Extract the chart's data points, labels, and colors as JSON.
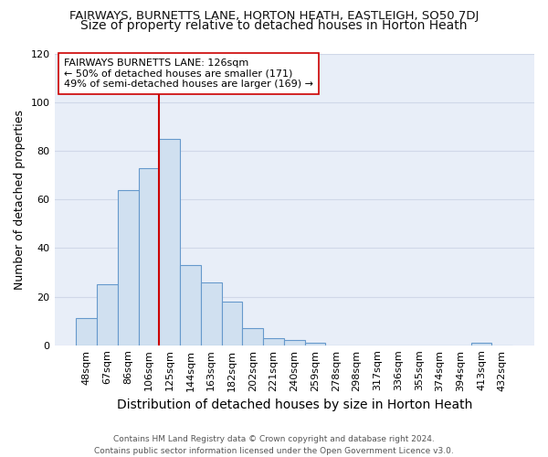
{
  "title": "FAIRWAYS, BURNETTS LANE, HORTON HEATH, EASTLEIGH, SO50 7DJ",
  "subtitle": "Size of property relative to detached houses in Horton Heath",
  "xlabel": "Distribution of detached houses by size in Horton Heath",
  "ylabel": "Number of detached properties",
  "categories": [
    "48sqm",
    "67sqm",
    "86sqm",
    "106sqm",
    "125sqm",
    "144sqm",
    "163sqm",
    "182sqm",
    "202sqm",
    "221sqm",
    "240sqm",
    "259sqm",
    "278sqm",
    "298sqm",
    "317sqm",
    "336sqm",
    "355sqm",
    "374sqm",
    "394sqm",
    "413sqm",
    "432sqm"
  ],
  "values": [
    11,
    25,
    64,
    73,
    85,
    33,
    26,
    18,
    7,
    3,
    2,
    1,
    0,
    0,
    0,
    0,
    0,
    0,
    0,
    1,
    0
  ],
  "bar_color": "#d0e0f0",
  "bar_edge_color": "#6699cc",
  "bar_width": 1.0,
  "red_line_x": 4.0,
  "red_line_color": "#cc0000",
  "annotation_line1": "FAIRWAYS BURNETTS LANE: 126sqm",
  "annotation_line2": "← 50% of detached houses are smaller (171)",
  "annotation_line3": "49% of semi-detached houses are larger (169) →",
  "annotation_box_color": "#ffffff",
  "annotation_box_edge": "#cc0000",
  "ylim": [
    0,
    120
  ],
  "yticks": [
    0,
    20,
    40,
    60,
    80,
    100,
    120
  ],
  "grid_color": "#d0d8e8",
  "bg_color": "#e8eef8",
  "fig_bg_color": "#ffffff",
  "footnote1": "Contains HM Land Registry data © Crown copyright and database right 2024.",
  "footnote2": "Contains public sector information licensed under the Open Government Licence v3.0.",
  "title_fontsize": 9.5,
  "subtitle_fontsize": 10,
  "ylabel_fontsize": 9,
  "xlabel_fontsize": 10,
  "annot_fontsize": 8,
  "tick_fontsize": 8,
  "footnote_fontsize": 6.5
}
